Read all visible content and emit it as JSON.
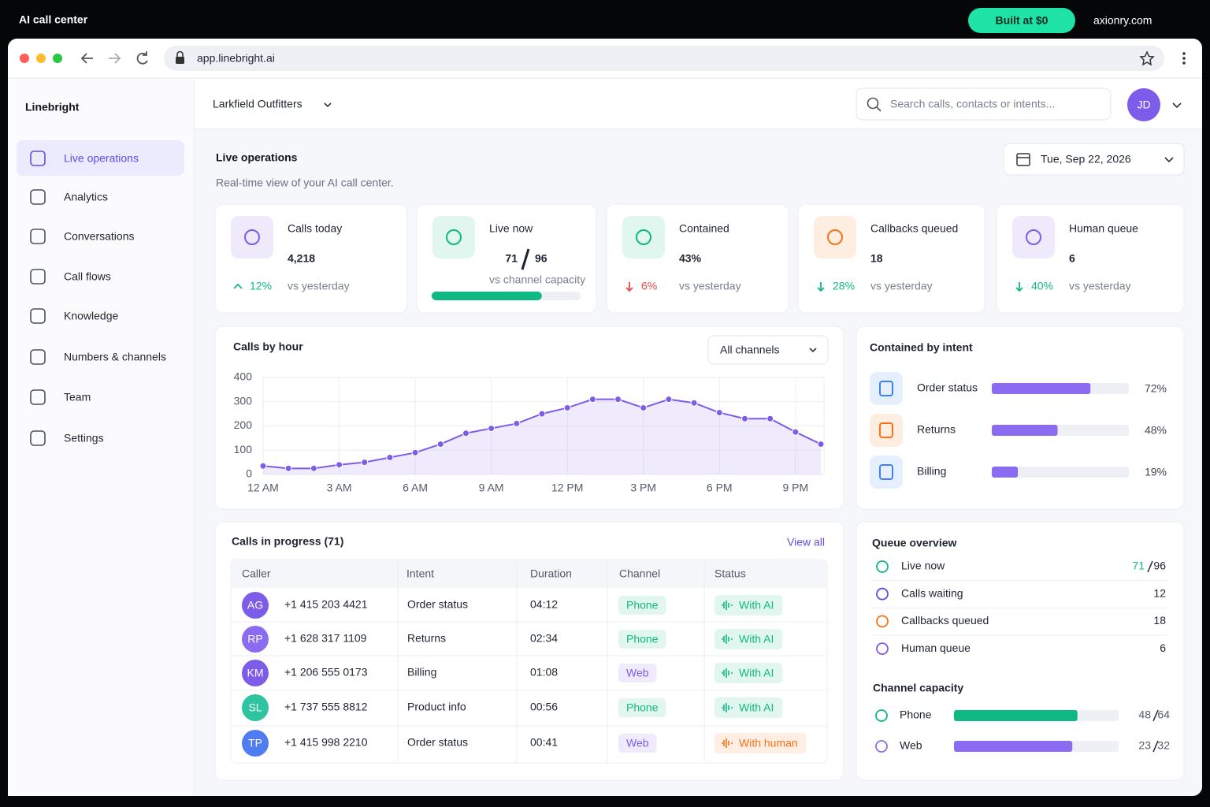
{
  "banner": {
    "title": "AI call center",
    "badge": "Built at $0",
    "site": "axionry.com"
  },
  "browser": {
    "url": "app.linebright.ai"
  },
  "sidebar": {
    "brand": "Linebright",
    "active": 0,
    "nav": [
      "Live operations",
      "Analytics",
      "Conversations",
      "Call flows",
      "Knowledge",
      "Numbers & channels",
      "Team",
      "Settings"
    ]
  },
  "topbar": {
    "workspace": "Larkfield Outfitters",
    "search_placeholder": "Search calls, contacts or intents...",
    "avatar": "JD"
  },
  "header": {
    "title": "Live operations",
    "subtitle": "Real-time view of your AI call center.",
    "date": "Tue, Sep 22, 2026"
  },
  "kpis": [
    {
      "label": "Calls today",
      "value": "4,218",
      "change": "12%",
      "direction": "up",
      "change_color": "#10b981",
      "note": "vs yesterday",
      "color": "#7c5ce8"
    },
    {
      "label": "Live now",
      "value": 71,
      "capacity": 96,
      "note": "vs channel capacity",
      "color": "#10b981"
    },
    {
      "label": "Contained",
      "value": "43%",
      "change": "6%",
      "direction": "down",
      "change_color": "#e5484d",
      "note": "vs yesterday",
      "color": "#10b981"
    },
    {
      "label": "Callbacks queued",
      "value": "18",
      "change": "28%",
      "direction": "down",
      "change_color": "#10b981",
      "note": "vs yesterday",
      "color": "#f97316"
    },
    {
      "label": "Human queue",
      "value": "6",
      "change": "40%",
      "direction": "down",
      "change_color": "#10b981",
      "note": "vs yesterday",
      "color": "#7c5ce8"
    }
  ],
  "chart_data": {
    "type": "line",
    "title": "Calls by hour",
    "filter": "All channels",
    "color": "#7c5ce8",
    "grid": true,
    "x": [
      0,
      1,
      2,
      3,
      4,
      5,
      6,
      7,
      8,
      9,
      10,
      11,
      12,
      13,
      14,
      15,
      16,
      17,
      18,
      19,
      20,
      21,
      22
    ],
    "values": [
      35,
      25,
      25,
      40,
      50,
      70,
      90,
      125,
      170,
      190,
      210,
      250,
      275,
      310,
      310,
      275,
      310,
      295,
      255,
      230,
      230,
      175,
      125
    ],
    "xlim": [
      0,
      22
    ],
    "xticks": [
      {
        "value": 0,
        "label": "12 AM"
      },
      {
        "value": 3,
        "label": "3 AM"
      },
      {
        "value": 6,
        "label": "6 AM"
      },
      {
        "value": 9,
        "label": "9 AM"
      },
      {
        "value": 12,
        "label": "12 PM"
      },
      {
        "value": 15,
        "label": "3 PM"
      },
      {
        "value": 18,
        "label": "6 PM"
      },
      {
        "value": 21,
        "label": "9 PM"
      }
    ],
    "ylim": [
      0,
      400
    ],
    "yticks": [
      0,
      100,
      200,
      300,
      400
    ]
  },
  "intents": {
    "title": "Contained by intent",
    "bar_color": "#8b6cf0",
    "items": [
      {
        "name": "Order status",
        "value": 72,
        "label": "72%",
        "color": "#3b82f6"
      },
      {
        "name": "Returns",
        "value": 48,
        "label": "48%",
        "color": "#f97316"
      },
      {
        "name": "Billing",
        "value": 19,
        "label": "19%",
        "color": "#3b82f6"
      }
    ]
  },
  "calls": {
    "title": "Calls in progress (71)",
    "link": "View all",
    "columns": [
      "Caller",
      "Intent",
      "Duration",
      "Channel",
      "Status"
    ],
    "rows": [
      {
        "initials": "AG",
        "avatar_color": "#7c5ce8",
        "caller": "+1 415 203 4421",
        "intent": "Order status",
        "duration": "04:12",
        "channel": "Phone",
        "channel_color": "#10b981",
        "status": "With AI",
        "status_color": "#10b981"
      },
      {
        "initials": "RP",
        "avatar_color": "#8b6cf0",
        "caller": "+1 628 317 1109",
        "intent": "Returns",
        "duration": "02:34",
        "channel": "Phone",
        "channel_color": "#10b981",
        "status": "With AI",
        "status_color": "#10b981"
      },
      {
        "initials": "KM",
        "avatar_color": "#7c5ce8",
        "caller": "+1 206 555 0173",
        "intent": "Billing",
        "duration": "01:08",
        "channel": "Web",
        "channel_color": "#7c5ce8",
        "status": "With AI",
        "status_color": "#10b981"
      },
      {
        "initials": "SL",
        "avatar_color": "#2ec4a0",
        "caller": "+1 737 555 8812",
        "intent": "Product info",
        "duration": "00:56",
        "channel": "Phone",
        "channel_color": "#10b981",
        "status": "With AI",
        "status_color": "#10b981"
      },
      {
        "initials": "TP",
        "avatar_color": "#4f7cf0",
        "caller": "+1 415 998 2210",
        "intent": "Order status",
        "duration": "00:41",
        "channel": "Web",
        "channel_color": "#7c5ce8",
        "status": "With human",
        "status_color": "#f97316"
      }
    ]
  },
  "queue": {
    "title": "Queue overview",
    "items": [
      {
        "name": "Live now",
        "value": 71,
        "capacity": 96,
        "color": "#10b981"
      },
      {
        "name": "Calls waiting",
        "value": 12,
        "color": "#5b4ee6"
      },
      {
        "name": "Callbacks queued",
        "value": 18,
        "color": "#f97316"
      },
      {
        "name": "Human queue",
        "value": 6,
        "color": "#7c5ce8"
      }
    ]
  },
  "capacity": {
    "title": "Channel capacity",
    "items": [
      {
        "name": "Phone",
        "used": 48,
        "total": 64,
        "color": "#10b981"
      },
      {
        "name": "Web",
        "used": 23,
        "total": 32,
        "color": "#8b6cf0"
      }
    ]
  }
}
